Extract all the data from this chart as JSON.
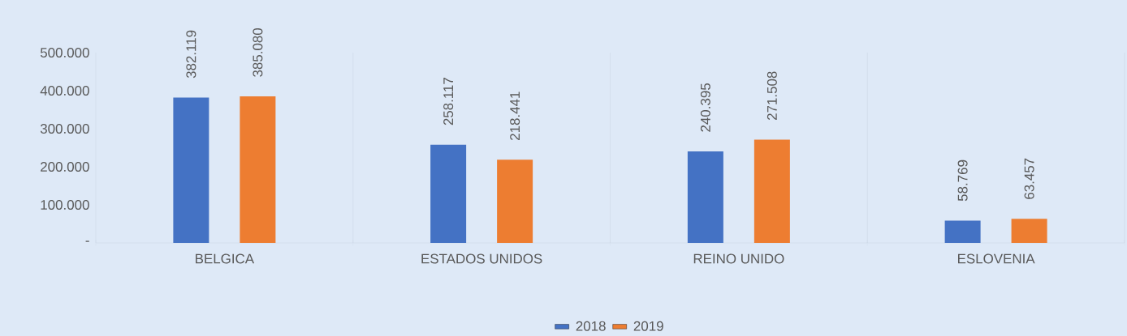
{
  "chart_data": {
    "type": "bar",
    "categories": [
      "BELGICA",
      "ESTADOS UNIDOS",
      "REINO UNIDO",
      "ESLOVENIA"
    ],
    "series": [
      {
        "name": "2018",
        "color": "#4472c4",
        "values": [
          382119,
          258117,
          240395,
          58769
        ],
        "value_labels": [
          "382.119",
          "258.117",
          "240.395",
          "58.769"
        ]
      },
      {
        "name": "2019",
        "color": "#ed7d31",
        "values": [
          385080,
          218441,
          271508,
          63457
        ],
        "value_labels": [
          "385.080",
          "218.441",
          "271.508",
          "63.457"
        ]
      }
    ],
    "ylim": [
      0,
      500000
    ],
    "yticks": [
      {
        "value": 0,
        "label": "-"
      },
      {
        "value": 100000,
        "label": "100.000"
      },
      {
        "value": 200000,
        "label": "200.000"
      },
      {
        "value": 300000,
        "label": "300.000"
      },
      {
        "value": 400000,
        "label": "400.000"
      },
      {
        "value": 500000,
        "label": "500.000"
      }
    ],
    "grid": "x",
    "legend": "bottom"
  }
}
